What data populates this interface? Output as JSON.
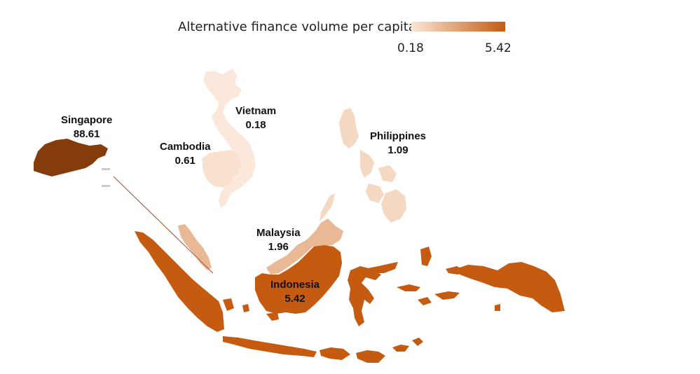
{
  "legend": {
    "title": "Alternative finance volume per capita",
    "min_label": "0.18",
    "max_label": "5.42",
    "min_color": "#fbe6d6",
    "max_color": "#c55a11"
  },
  "countries": [
    {
      "id": "vietnam",
      "name": "Vietnam",
      "value": "0.18",
      "color": "#fbe8da"
    },
    {
      "id": "cambodia",
      "name": "Cambodia",
      "value": "0.61",
      "color": "#f8e1cf"
    },
    {
      "id": "philippines",
      "name": "Philippines",
      "value": "1.09",
      "color": "#f5d8c1"
    },
    {
      "id": "malaysia",
      "name": "Malaysia",
      "value": "1.96",
      "color": "#e9b996"
    },
    {
      "id": "indonesia",
      "name": "Indonesia",
      "value": "5.42",
      "color": "#c55a11"
    },
    {
      "id": "singapore",
      "name": "Singapore",
      "value": "88.61",
      "color": "#843c0c"
    }
  ]
}
